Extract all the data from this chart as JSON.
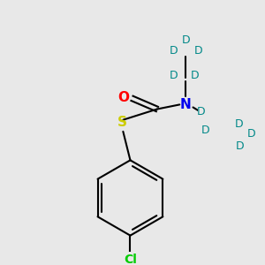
{
  "bg_color": "#e8e8e8",
  "atom_colors": {
    "O": "#ff0000",
    "N": "#0000ee",
    "S": "#cccc00",
    "Cl": "#00cc00",
    "D": "#008888"
  },
  "bond_color": "#000000",
  "bond_width": 1.5
}
